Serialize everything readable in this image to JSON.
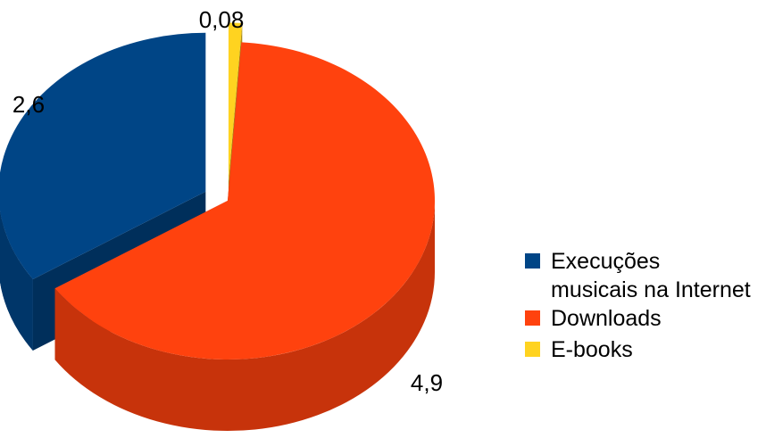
{
  "chart_data": {
    "type": "pie",
    "style": "3d-exploded",
    "categories": [
      "Execuções musicais na Internet",
      "Downloads",
      "E-books"
    ],
    "values": [
      2.6,
      4.9,
      0.08
    ],
    "value_labels": [
      "2,6",
      "4,9",
      "0,08"
    ],
    "colors": [
      "#004586",
      "#ff420e",
      "#ffd320"
    ],
    "legend": {
      "placement": "right",
      "entries": [
        {
          "lines": [
            "Execuções",
            "musicais na Internet"
          ],
          "color": "#004586"
        },
        {
          "lines": [
            "Downloads"
          ],
          "color": "#ff420e"
        },
        {
          "lines": [
            "E-books"
          ],
          "color": "#ffd320"
        }
      ]
    }
  }
}
